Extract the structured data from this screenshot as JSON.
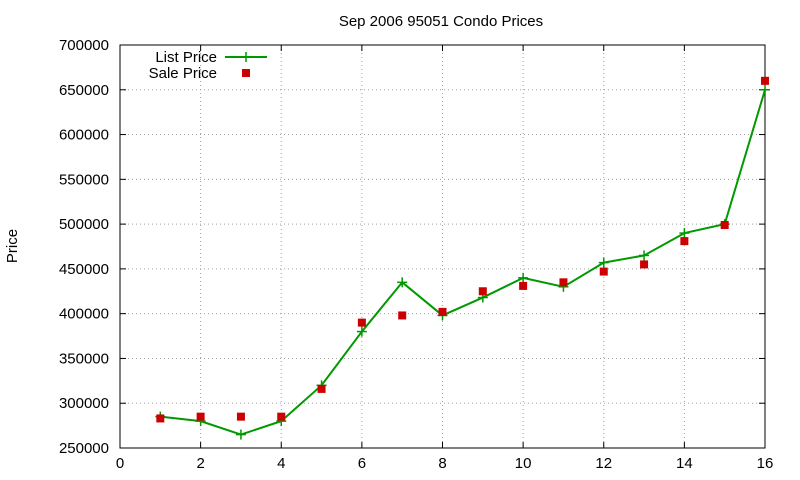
{
  "chart_data": {
    "type": "line",
    "title": "Sep 2006 95051 Condo Prices",
    "xlabel": "",
    "ylabel": "Price",
    "xlim": [
      0,
      16
    ],
    "ylim": [
      250000,
      700000
    ],
    "x_ticks": [
      0,
      2,
      4,
      6,
      8,
      10,
      12,
      14,
      16
    ],
    "y_ticks": [
      250000,
      300000,
      350000,
      400000,
      450000,
      500000,
      550000,
      600000,
      650000,
      700000
    ],
    "grid": true,
    "legend_position": "top-left",
    "series": [
      {
        "name": "List Price",
        "style": "line+points",
        "marker": "plus",
        "color": "#009900",
        "x": [
          1,
          2,
          3,
          4,
          5,
          6,
          7,
          8,
          9,
          10,
          11,
          12,
          13,
          14,
          15,
          16
        ],
        "values": [
          285000,
          280000,
          265000,
          280000,
          320000,
          380000,
          435000,
          398000,
          418000,
          440000,
          430000,
          457000,
          465000,
          490000,
          500000,
          650000
        ]
      },
      {
        "name": "Sale Price",
        "style": "points",
        "marker": "square",
        "color": "#cc0000",
        "x": [
          1,
          2,
          3,
          4,
          5,
          6,
          7,
          8,
          9,
          10,
          11,
          12,
          13,
          14,
          15,
          16
        ],
        "values": [
          283000,
          285000,
          285000,
          285000,
          316000,
          390000,
          398000,
          402000,
          425000,
          431000,
          435000,
          447000,
          455000,
          481000,
          499000,
          660000
        ]
      }
    ]
  }
}
